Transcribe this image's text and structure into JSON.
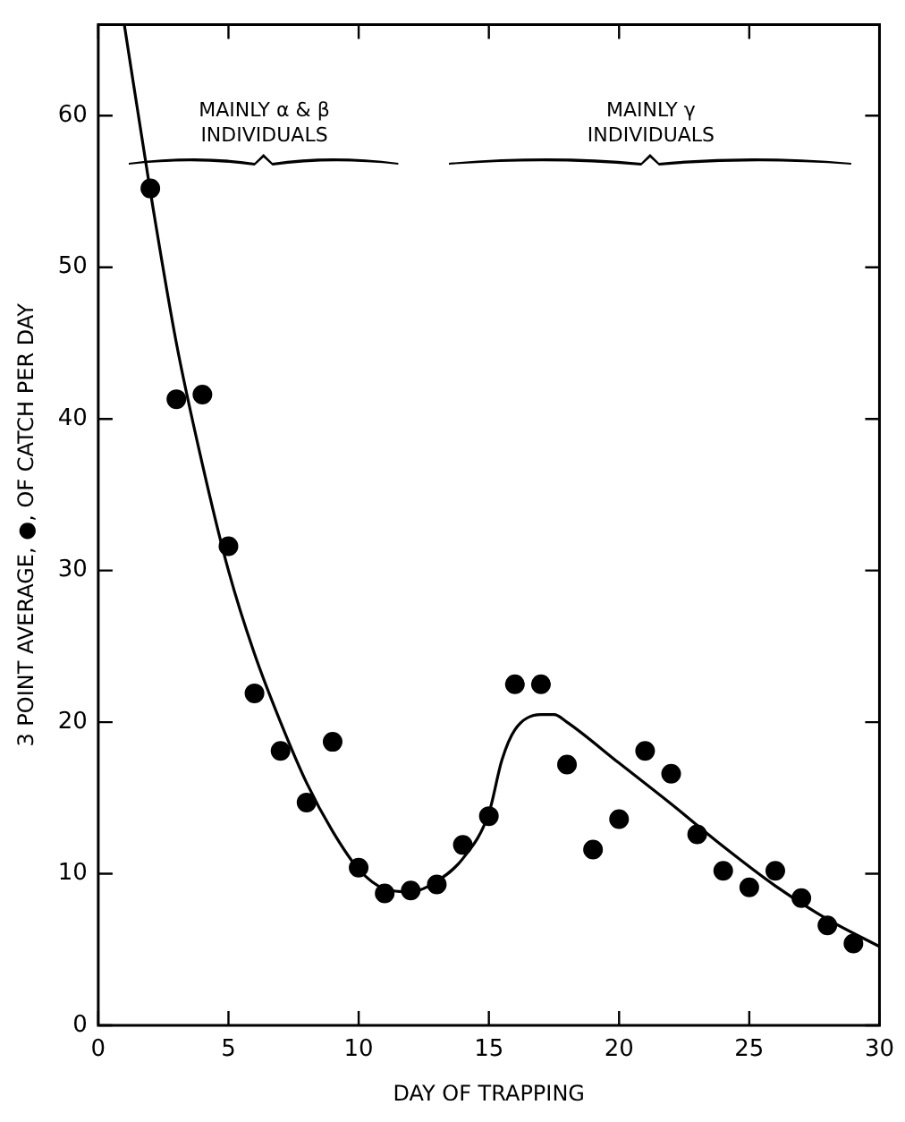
{
  "chart_data": {
    "type": "scatter",
    "xlabel": "DAY OF TRAPPING",
    "ylabel": "3 POINT AVERAGE, ●, OF CATCH PER DAY",
    "xlim": [
      0,
      30
    ],
    "xticks": [
      0,
      5,
      10,
      15,
      20,
      25,
      30
    ],
    "ylim": [
      0,
      66
    ],
    "yticks": [
      0,
      10,
      20,
      30,
      40,
      50,
      60
    ],
    "grid": false,
    "legend": false,
    "marker": "circle",
    "annotations": [
      "MAINLY α & β INDIVIDUALS",
      "MAINLY γ INDIVIDUALS"
    ],
    "series": [
      {
        "type": "scatter",
        "color": "#000000",
        "x": [
          2,
          3,
          4,
          5,
          6,
          7,
          8,
          9,
          10,
          11,
          12,
          13,
          14,
          15,
          16,
          17,
          18,
          19,
          20,
          21,
          22,
          23,
          24,
          25,
          26,
          27,
          28,
          29
        ],
        "values": [
          55.2,
          41.3,
          41.6,
          31.6,
          21.9,
          18.1,
          14.7,
          18.7,
          10.4,
          8.7,
          8.9,
          9.3,
          11.9,
          13.8,
          22.5,
          22.5,
          17.2,
          11.6,
          13.6,
          18.1,
          16.6,
          12.6,
          10.2,
          9.1,
          10.2,
          8.4,
          6.6,
          5.4
        ]
      },
      {
        "type": "line",
        "color": "#000000",
        "marker": "none",
        "x": [
          1,
          2,
          3,
          4,
          5,
          6,
          7,
          8,
          9,
          10,
          11,
          12,
          13,
          14,
          15,
          15.5,
          16,
          17,
          17.5,
          18,
          20,
          22,
          24,
          26,
          28,
          30
        ],
        "values": [
          66,
          55,
          45,
          37,
          30,
          24.5,
          20,
          16,
          12.8,
          10.3,
          9,
          8.8,
          9.5,
          11,
          14,
          17.5,
          19.5,
          20.5,
          20.5,
          20,
          17.3,
          14.6,
          11.8,
          9.2,
          7,
          5.2
        ]
      }
    ]
  }
}
